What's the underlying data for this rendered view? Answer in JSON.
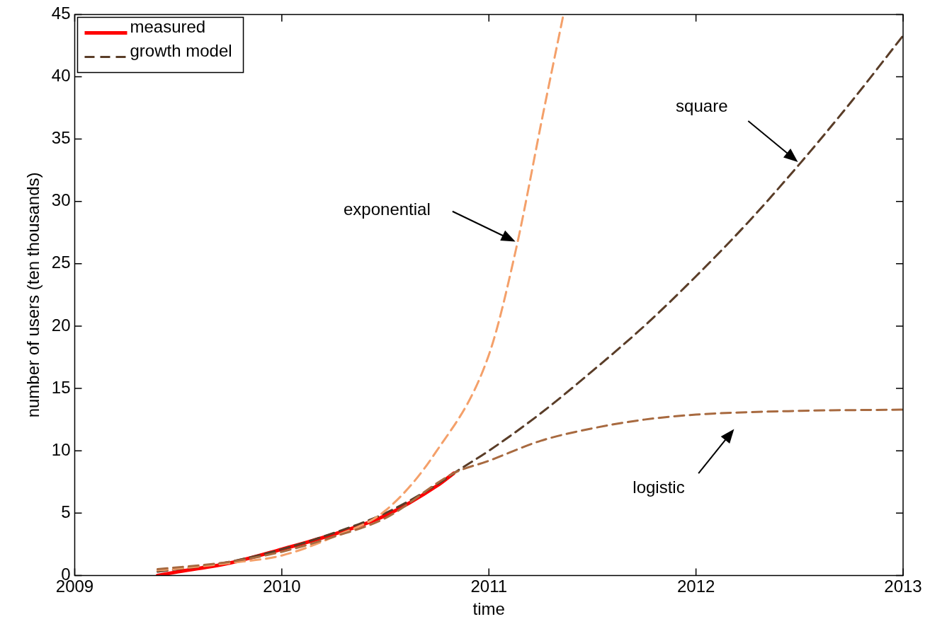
{
  "chart_data": {
    "type": "line",
    "xlabel": "time",
    "ylabel": "number of users (ten thousands)",
    "xlim": [
      2009,
      2013
    ],
    "xticks": [
      2009,
      2010,
      2011,
      2012,
      2013
    ],
    "ylim": [
      0,
      45
    ],
    "yticks": [
      0,
      5,
      10,
      15,
      20,
      25,
      30,
      35,
      40,
      45
    ],
    "grid": false,
    "legend": "top left",
    "marker": "none",
    "series": [
      {
        "name": "measured",
        "color": "#ff0000",
        "line_style": "solid",
        "x": [
          2009.4,
          2009.5,
          2009.75,
          2010,
          2010.25,
          2010.5,
          2010.75,
          2010.83
        ],
        "values": [
          0,
          0.3,
          1.0,
          2.1,
          3.3,
          4.8,
          7.2,
          8.2
        ]
      },
      {
        "name": "growth model",
        "color": "#5a3d28",
        "line_style": "dashed",
        "x": [
          2009.4,
          2009.75,
          2010,
          2010.25,
          2010.5,
          2010.75,
          2010.83,
          2011,
          2011.25,
          2011.5,
          2011.75,
          2012,
          2012.25,
          2012.5,
          2012.75,
          2013
        ],
        "values": [
          0.3,
          1.1,
          2.1,
          3.4,
          5.0,
          7.3,
          8.2,
          10.0,
          13.0,
          16.4,
          20.0,
          24.0,
          28.3,
          33.0,
          38.0,
          43.3
        ]
      },
      {
        "color": "#f4a06a",
        "line_style": "dashed",
        "x": [
          2009.4,
          2009.5,
          2009.75,
          2010,
          2010.25,
          2010.5,
          2010.74,
          2011,
          2011.13,
          2011.26,
          2011.36
        ],
        "values": [
          0.4,
          0.55,
          1.0,
          1.6,
          3.1,
          5.2,
          9.8,
          17.7,
          26.1,
          36.9,
          45
        ]
      },
      {
        "color": "#a86a40",
        "line_style": "dashed",
        "x": [
          2009.4,
          2009.75,
          2010,
          2010.25,
          2010.5,
          2010.83,
          2011,
          2011.25,
          2011.5,
          2011.75,
          2012,
          2012.5,
          2013
        ],
        "values": [
          0.5,
          1.1,
          1.9,
          3.1,
          4.6,
          8.2,
          9.2,
          10.8,
          11.8,
          12.5,
          12.9,
          13.2,
          13.3
        ]
      }
    ],
    "annotations": [
      "exponential",
      "square",
      "logistic"
    ]
  }
}
